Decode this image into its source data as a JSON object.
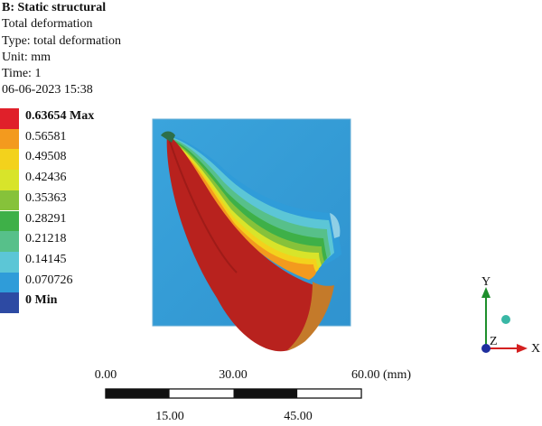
{
  "header": {
    "title": "B: Static structural",
    "result": "Total deformation",
    "type": "Type: total deformation",
    "unit": "Unit: mm",
    "time": "Time: 1",
    "datetime": "06-06-2023 15:38"
  },
  "legend": [
    {
      "label": "0.63654 Max",
      "color": "#e0202a",
      "bold": true
    },
    {
      "label": "0.56581",
      "color": "#f39a1e",
      "bold": false
    },
    {
      "label": "0.49508",
      "color": "#f3d21c",
      "bold": false
    },
    {
      "label": "0.42436",
      "color": "#d8e42a",
      "bold": false
    },
    {
      "label": "0.35363",
      "color": "#86c23a",
      "bold": false
    },
    {
      "label": "0.28291",
      "color": "#3eb048",
      "bold": false
    },
    {
      "label": "0.21218",
      "color": "#57c08a",
      "bold": false
    },
    {
      "label": "0.14145",
      "color": "#5cc6d6",
      "bold": false
    },
    {
      "label": "0.070726",
      "color": "#2f9cd9",
      "bold": false
    },
    {
      "label": "0 Min",
      "color": "#2d4aa3",
      "bold": true
    }
  ],
  "triad": {
    "x_label": "X",
    "y_label": "Y",
    "z_label": "Z",
    "x_color": "#d42020",
    "y_color": "#1e8f2c",
    "z_color": "#1f2f9e"
  },
  "scale_bar": {
    "top_labels": [
      "0.00",
      "30.00",
      "60.00 (mm)"
    ],
    "bottom_labels": [
      "15.00",
      "45.00"
    ]
  }
}
